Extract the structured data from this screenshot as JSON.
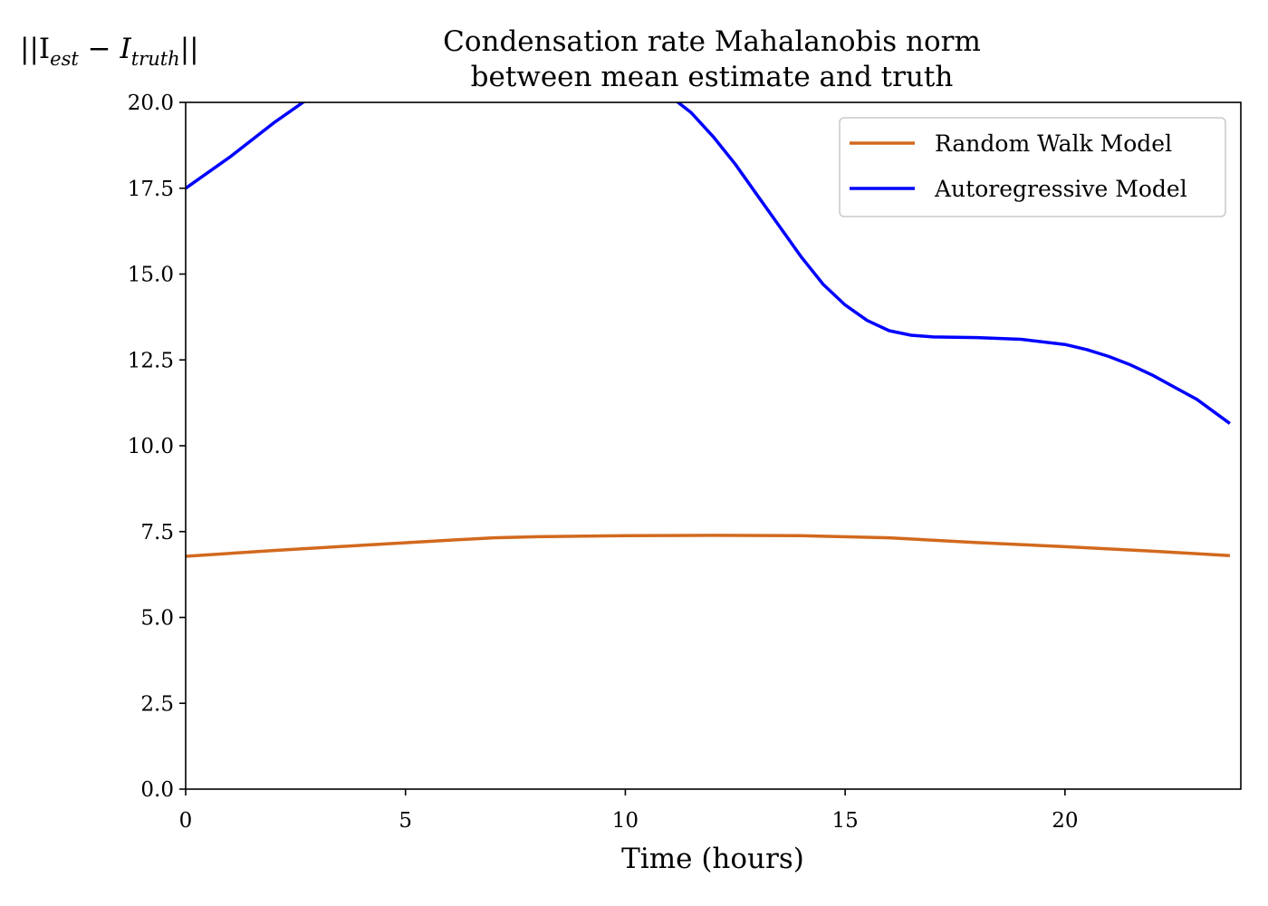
{
  "chart_data": {
    "type": "line",
    "title": "Condensation rate Mahalanobis norm",
    "subtitle": "between mean estimate and truth",
    "xlabel": "Time (hours)",
    "ylabel": "||I_est − I_truth||",
    "ylabel_parts": {
      "pre": "||I",
      "sub1": "est",
      "mid": " − I",
      "sub2": "truth",
      "post": "||"
    },
    "xlim": [
      0,
      24
    ],
    "ylim": [
      0,
      20
    ],
    "xticks": [
      0,
      5,
      10,
      15,
      20
    ],
    "xtick_labels": [
      "0",
      "5",
      "10",
      "15",
      "20"
    ],
    "yticks": [
      0,
      2.5,
      5,
      7.5,
      10,
      12.5,
      15,
      17.5,
      20
    ],
    "ytick_labels": [
      "0.0",
      "2.5",
      "5.0",
      "7.5",
      "10.0",
      "12.5",
      "15.0",
      "17.5",
      "20.0"
    ],
    "grid": false,
    "legend_position": "top-right",
    "series": [
      {
        "name": "Random Walk Model",
        "color": "#d2691e",
        "x": [
          0,
          2,
          4,
          6,
          7,
          8,
          10,
          12,
          14,
          16,
          18,
          20,
          22,
          23.75
        ],
        "y": [
          6.78,
          6.95,
          7.1,
          7.25,
          7.32,
          7.35,
          7.38,
          7.39,
          7.38,
          7.32,
          7.18,
          7.06,
          6.93,
          6.8
        ]
      },
      {
        "name": "Autoregressive Model",
        "color": "#0000ff",
        "x": [
          0,
          1,
          2,
          2.5,
          3,
          5,
          8,
          10,
          11,
          11.5,
          12,
          12.5,
          13,
          13.5,
          14,
          14.5,
          15,
          15.5,
          16,
          16.5,
          17,
          18,
          19,
          20,
          20.5,
          21,
          21.5,
          22,
          22.5,
          23,
          23.75
        ],
        "y": [
          17.5,
          18.4,
          19.4,
          19.85,
          20.3,
          21.4,
          21.6,
          21.0,
          20.2,
          19.7,
          19.0,
          18.2,
          17.3,
          16.4,
          15.5,
          14.7,
          14.1,
          13.65,
          13.35,
          13.22,
          13.17,
          13.15,
          13.1,
          12.95,
          12.8,
          12.6,
          12.35,
          12.05,
          11.7,
          11.35,
          10.65
        ]
      }
    ]
  }
}
